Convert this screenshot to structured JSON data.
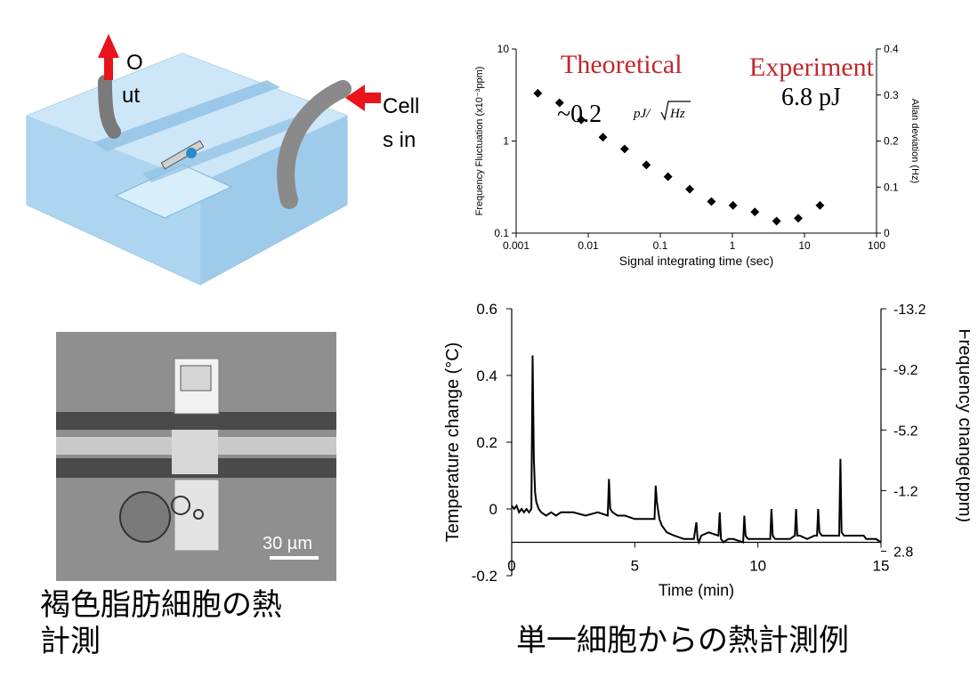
{
  "device": {
    "label_out_1": "O",
    "label_out_2": "ut",
    "label_in_1": "Cell",
    "label_in_2": "s in",
    "colors": {
      "arrow": "#e8141b",
      "chip": "#a9d3ef",
      "tube": "#8d8d8d"
    }
  },
  "micrograph": {
    "scale_label": "30 µm",
    "caption": "褐色脂肪細胞の熱\n計測"
  },
  "main_caption": "単一細胞からの熱計測例",
  "chart_data": [
    {
      "type": "scatter",
      "y_scale": "log",
      "x_scale": "log",
      "xlabel": "Signal integrating time (sec)",
      "ylabel": "Frequency Fluctuation (x10⁻³ppm)",
      "y2label": "Allan deviation (Hz)",
      "xlim": [
        0.001,
        100
      ],
      "ylim": [
        0.1,
        10
      ],
      "y2lim": [
        0,
        0.4
      ],
      "x_ticks": [
        "0.001",
        "0.01",
        "0.1",
        "1",
        "10",
        "100"
      ],
      "y_ticks": [
        "0.1",
        "1",
        "10"
      ],
      "y2_ticks": [
        "0",
        "0.1",
        "0.2",
        "0.3",
        "0.4"
      ],
      "annotations": {
        "theoretical": "Theoretical",
        "theoretical_value": "~0.2",
        "theoretical_unit": "pJ/",
        "theoretical_unit_sqrt": "Hz",
        "experiment": "Experiment",
        "experiment_value": "6.8 pJ"
      },
      "points": [
        {
          "x": 0.002,
          "y": 3.3
        },
        {
          "x": 0.004,
          "y": 2.6
        },
        {
          "x": 0.008,
          "y": 1.7
        },
        {
          "x": 0.016,
          "y": 1.1
        },
        {
          "x": 0.032,
          "y": 0.82
        },
        {
          "x": 0.064,
          "y": 0.55
        },
        {
          "x": 0.128,
          "y": 0.41
        },
        {
          "x": 0.256,
          "y": 0.3
        },
        {
          "x": 0.512,
          "y": 0.22
        },
        {
          "x": 1.02,
          "y": 0.2
        },
        {
          "x": 2.05,
          "y": 0.17
        },
        {
          "x": 4.1,
          "y": 0.135
        },
        {
          "x": 8.2,
          "y": 0.145
        },
        {
          "x": 16.4,
          "y": 0.2
        }
      ]
    },
    {
      "type": "line",
      "xlabel": "Time (min)",
      "ylabel": "Temperature change (°C)",
      "y2label": "Frequency change(ppm)",
      "xlim": [
        0,
        15
      ],
      "ylim": [
        -0.2,
        0.6
      ],
      "x_ticks": [
        "0",
        "5",
        "10",
        "15"
      ],
      "y_ticks": [
        "-0.2",
        "0",
        "0.2",
        "0.4",
        "0.6"
      ],
      "y2_ticks": [
        "-13.2",
        "-9.2",
        "-5.2",
        "-1.2",
        "2.8"
      ],
      "baseline": -0.1,
      "series": [
        {
          "x": [
            0,
            0.1,
            0.2,
            0.3,
            0.4,
            0.5,
            0.6,
            0.7,
            0.8,
            0.85,
            0.9,
            0.95,
            1.0,
            1.1,
            1.2,
            1.4,
            1.6,
            1.8,
            2.0,
            2.5,
            3.0,
            3.5,
            3.9,
            3.95,
            4.0,
            4.1,
            4.3,
            4.6,
            5.0,
            5.5,
            5.8,
            5.85,
            5.9,
            6.0,
            6.1,
            6.3,
            6.6,
            7.0,
            7.4,
            7.5,
            7.55,
            7.6,
            7.7,
            8.0,
            8.4,
            8.45,
            8.5,
            8.6,
            8.8,
            9.0,
            9.4,
            9.45,
            9.5,
            9.6,
            9.8,
            10.2,
            10.5,
            10.55,
            10.6,
            10.7,
            10.9,
            11.3,
            11.5,
            11.55,
            11.6,
            11.7,
            12.0,
            12.3,
            12.4,
            12.45,
            12.5,
            12.6,
            12.8,
            13.2,
            13.3,
            13.35,
            13.4,
            13.5,
            13.8,
            14.0,
            14.3,
            14.4,
            14.45,
            14.5,
            14.6,
            14.8,
            15.0
          ],
          "y": [
            0.01,
            0.0,
            0.01,
            -0.01,
            0.0,
            -0.01,
            0.0,
            -0.01,
            0.0,
            0.46,
            0.15,
            0.05,
            0.02,
            0.0,
            -0.01,
            -0.02,
            -0.01,
            -0.02,
            -0.01,
            -0.01,
            -0.02,
            -0.01,
            -0.02,
            0.09,
            0.0,
            -0.01,
            -0.02,
            -0.02,
            -0.03,
            -0.03,
            -0.03,
            0.07,
            0.02,
            -0.03,
            -0.05,
            -0.07,
            -0.08,
            -0.09,
            -0.09,
            -0.04,
            -0.09,
            -0.1,
            -0.08,
            -0.07,
            -0.08,
            -0.01,
            -0.09,
            -0.1,
            -0.09,
            -0.09,
            -0.1,
            -0.02,
            -0.08,
            -0.09,
            -0.09,
            -0.09,
            -0.09,
            -0.0,
            -0.08,
            -0.09,
            -0.09,
            -0.09,
            -0.08,
            -0.0,
            -0.08,
            -0.08,
            -0.09,
            -0.08,
            -0.08,
            0.0,
            -0.07,
            -0.08,
            -0.08,
            -0.08,
            -0.08,
            0.15,
            -0.07,
            -0.08,
            -0.08,
            -0.08,
            -0.08,
            -0.09,
            -0.09,
            -0.09,
            -0.09,
            -0.09,
            -0.1
          ]
        }
      ]
    }
  ]
}
